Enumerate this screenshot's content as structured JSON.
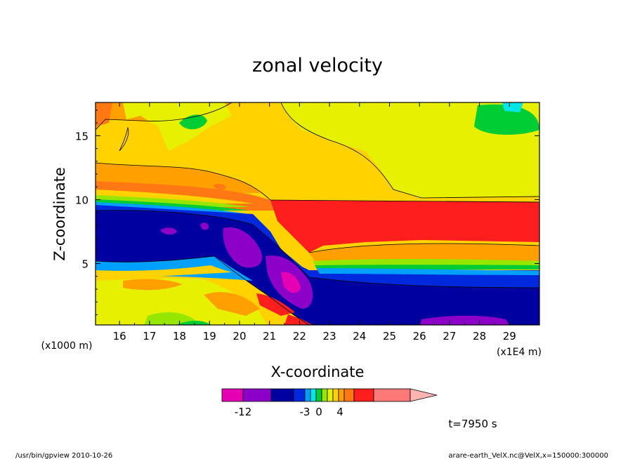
{
  "chart_data": {
    "type": "heatmap",
    "title": "zonal velocity",
    "xlabel": "X-coordinate",
    "ylabel": "Z-coordinate",
    "x_unit_left": "(x1000 m)",
    "x_unit_right": "(x1E4 m)",
    "xlim": [
      15.2,
      30.0
    ],
    "ylim": [
      0.2,
      17.6
    ],
    "x_ticks": [
      "16",
      "17",
      "18",
      "19",
      "20",
      "21",
      "22",
      "23",
      "24",
      "25",
      "26",
      "27",
      "28",
      "29"
    ],
    "y_ticks": [
      "5",
      "10",
      "15"
    ],
    "time_label": "t=7950 s",
    "colorbar": {
      "colors": [
        "#e600b4",
        "#8c00c8",
        "#0000a0",
        "#0028dc",
        "#00a0ff",
        "#00e6e6",
        "#00cc33",
        "#96e600",
        "#e6f000",
        "#ffd200",
        "#ffa000",
        "#ff7814",
        "#ff1e1e",
        "#ff7878",
        "#ffb4b4"
      ],
      "tick_labels": [
        "-12",
        "-3",
        "0",
        "4"
      ]
    }
  },
  "footer": {
    "left": "/usr/bin/gpview   2010-10-26",
    "right": "arare-earth_VelX.nc@VelX,x=150000:300000"
  }
}
